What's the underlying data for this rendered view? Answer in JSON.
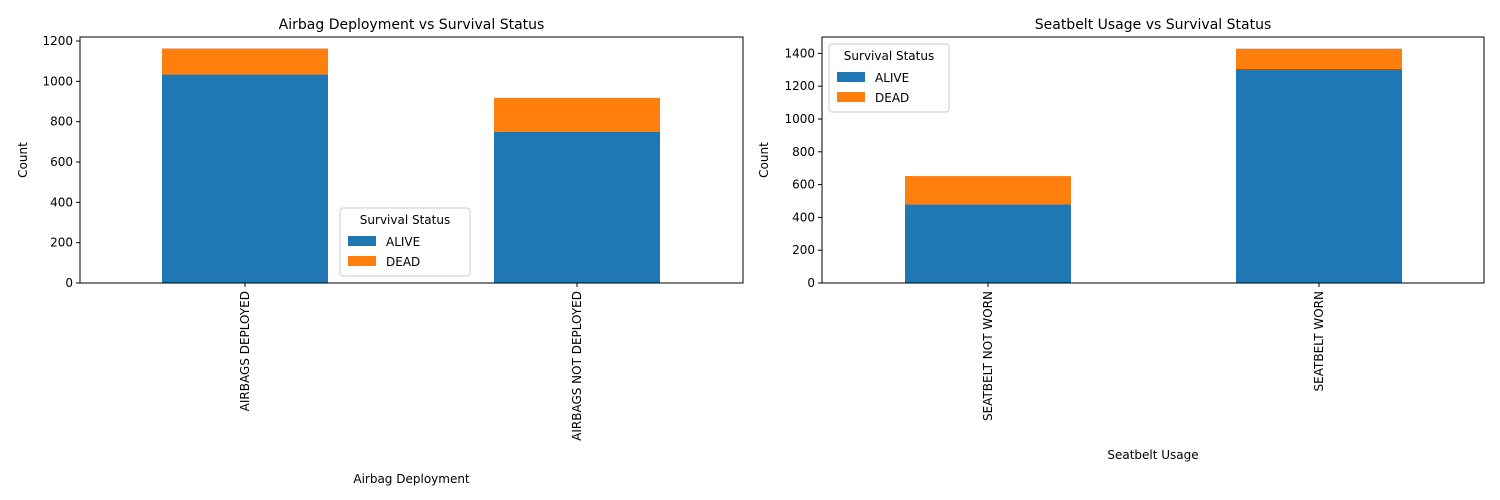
{
  "colors": {
    "alive": "#1f77b4",
    "dead": "#ff7f0e"
  },
  "chart_data": [
    {
      "type": "bar",
      "stacked": true,
      "title": "Airbag Deployment vs Survival Status",
      "xlabel": "Airbag Deployment",
      "ylabel": "Count",
      "categories": [
        "AIRBAGS DEPLOYED",
        "AIRBAGS NOT DEPLOYED"
      ],
      "series": [
        {
          "name": "ALIVE",
          "values": [
            1035,
            750
          ]
        },
        {
          "name": "DEAD",
          "values": [
            128,
            168
          ]
        }
      ],
      "ylim": [
        0,
        1220
      ],
      "yticks": [
        0,
        200,
        400,
        600,
        800,
        1000,
        1200
      ],
      "legend": {
        "title": "Survival Status",
        "placement": "lower-center"
      },
      "grid": false
    },
    {
      "type": "bar",
      "stacked": true,
      "title": "Seatbelt Usage vs Survival Status",
      "xlabel": "Seatbelt Usage",
      "ylabel": "Count",
      "categories": [
        "SEATBELT NOT WORN",
        "SEATBELT WORN"
      ],
      "series": [
        {
          "name": "ALIVE",
          "values": [
            480,
            1305
          ]
        },
        {
          "name": "DEAD",
          "values": [
            172,
            124
          ]
        }
      ],
      "ylim": [
        0,
        1500
      ],
      "yticks": [
        0,
        200,
        400,
        600,
        800,
        1000,
        1200,
        1400
      ],
      "legend": {
        "title": "Survival Status",
        "placement": "upper-left"
      },
      "grid": false
    }
  ]
}
